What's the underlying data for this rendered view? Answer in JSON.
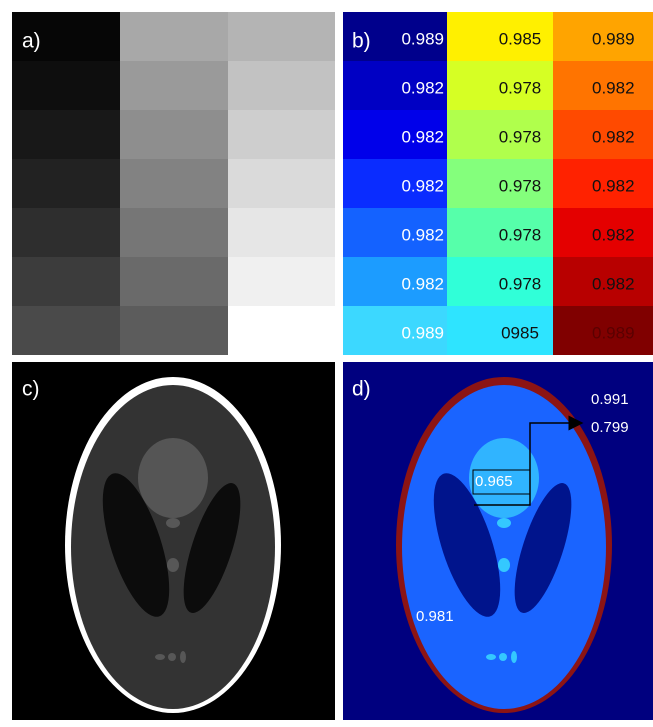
{
  "panels": [
    {
      "label": "a)"
    },
    {
      "label": "b)",
      "cells": [
        [
          "0.989",
          "0.985",
          "0.989"
        ],
        [
          "0.982",
          "0.978",
          "0.982"
        ],
        [
          "0.982",
          "0.978",
          "0.982"
        ],
        [
          "0.982",
          "0.978",
          "0.982"
        ],
        [
          "0.982",
          "0.978",
          "0.982"
        ],
        [
          "0.982",
          "0.978",
          "0.982"
        ],
        [
          "0.989",
          "0985",
          "0.989"
        ]
      ]
    },
    {
      "label": "c)"
    },
    {
      "label": "d)",
      "annotations": [
        "0.991",
        "0.799",
        "0.965",
        "0.981"
      ]
    }
  ]
}
